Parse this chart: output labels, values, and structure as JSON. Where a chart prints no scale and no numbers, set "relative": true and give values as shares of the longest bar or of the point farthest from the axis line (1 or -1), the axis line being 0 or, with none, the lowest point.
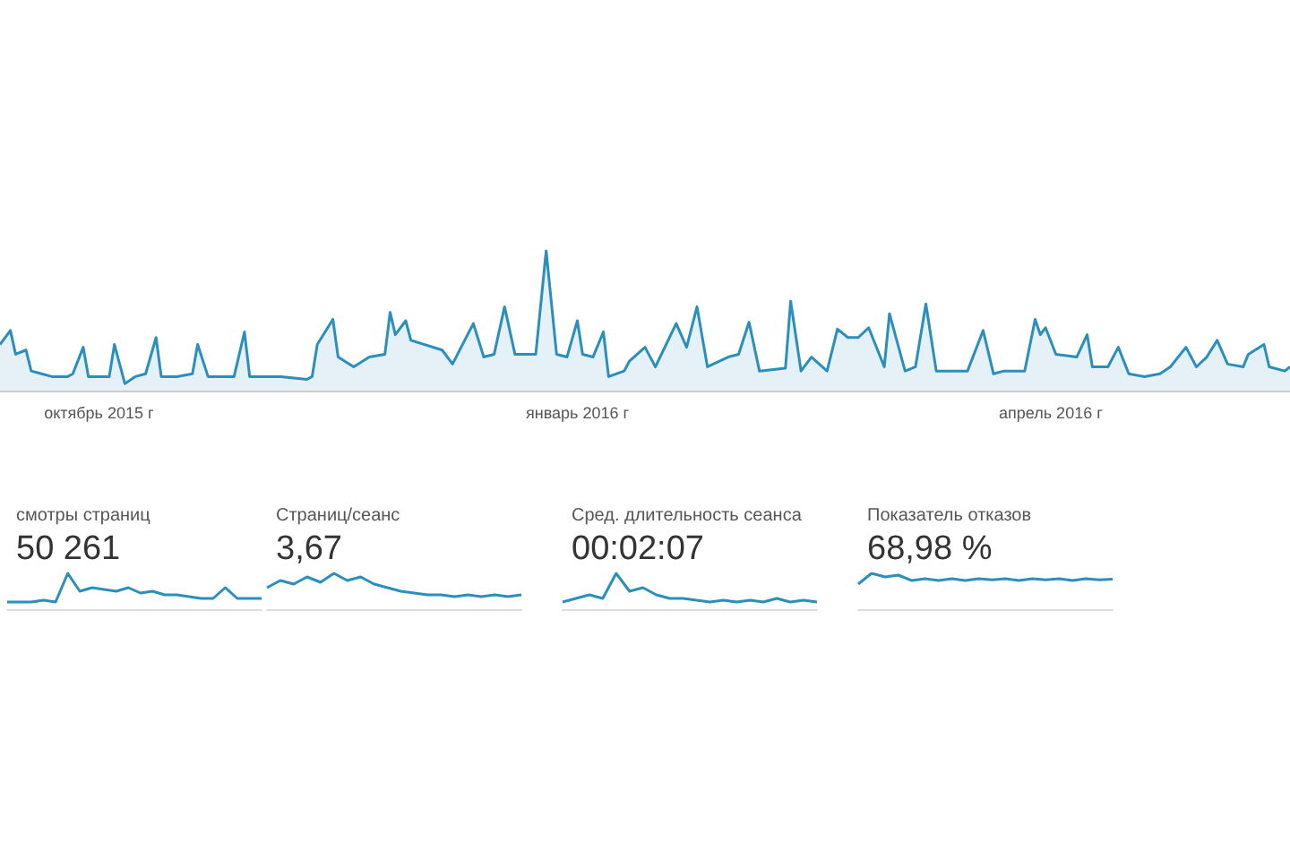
{
  "chart_data": [
    {
      "type": "area",
      "relative": true,
      "color": "#2a8fbd",
      "xlim": [
        "2015-09-12",
        "2016-05-17"
      ],
      "xticks": [
        {
          "value": "2015-10-01",
          "label": "октябрь 2015 г"
        },
        {
          "value": "2016-01-01",
          "label": "январь 2016 г"
        },
        {
          "value": "2016-04-01",
          "label": "апрель 2016 г"
        }
      ],
      "x": [
        "2015-09-12",
        "2015-09-14",
        "2015-09-15",
        "2015-09-17",
        "2015-09-18",
        "2015-09-20",
        "2015-09-22",
        "2015-09-25",
        "2015-09-26",
        "2015-09-28",
        "2015-09-29",
        "2015-10-03",
        "2015-10-04",
        "2015-10-06",
        "2015-10-08",
        "2015-10-10",
        "2015-10-12",
        "2015-10-13",
        "2015-10-16",
        "2015-10-19",
        "2015-10-20",
        "2015-10-22",
        "2015-10-27",
        "2015-10-29",
        "2015-10-30",
        "2015-11-05",
        "2015-11-10",
        "2015-11-11",
        "2015-11-12",
        "2015-11-15",
        "2015-11-16",
        "2015-11-19",
        "2015-11-22",
        "2015-11-25",
        "2015-11-26",
        "2015-11-27",
        "2015-11-29",
        "2015-11-30",
        "2015-12-06",
        "2015-12-08",
        "2015-12-12",
        "2015-12-14",
        "2015-12-16",
        "2015-12-18",
        "2015-12-20",
        "2015-12-24",
        "2015-12-26",
        "2015-12-28",
        "2015-12-30",
        "2016-01-01",
        "2016-01-02",
        "2016-01-04",
        "2016-01-06",
        "2016-01-07",
        "2016-01-10",
        "2016-01-11",
        "2016-01-14",
        "2016-01-16",
        "2016-01-20",
        "2016-01-22",
        "2016-01-24",
        "2016-01-26",
        "2016-01-30",
        "2016-02-01",
        "2016-02-03",
        "2016-02-05",
        "2016-02-10",
        "2016-02-11",
        "2016-02-13",
        "2016-02-15",
        "2016-02-18",
        "2016-02-20",
        "2016-02-22",
        "2016-02-24",
        "2016-02-26",
        "2016-02-29",
        "2016-03-01",
        "2016-03-04",
        "2016-03-06",
        "2016-03-08",
        "2016-03-10",
        "2016-03-14",
        "2016-03-16",
        "2016-03-19",
        "2016-03-21",
        "2016-03-23",
        "2016-03-27",
        "2016-03-29",
        "2016-03-30",
        "2016-03-31",
        "2016-04-02",
        "2016-04-06",
        "2016-04-08",
        "2016-04-09",
        "2016-04-12",
        "2016-04-14",
        "2016-04-16",
        "2016-04-19",
        "2016-04-22",
        "2016-04-24",
        "2016-04-27",
        "2016-04-29",
        "2016-05-01",
        "2016-05-03",
        "2016-05-05",
        "2016-05-08",
        "2016-05-09",
        "2016-05-12",
        "2016-05-13",
        "2016-05-16",
        "2016-05-17"
      ],
      "values": [
        0.33,
        0.43,
        0.26,
        0.29,
        0.14,
        0.12,
        0.1,
        0.1,
        0.12,
        0.31,
        0.1,
        0.1,
        0.33,
        0.05,
        0.1,
        0.12,
        0.38,
        0.1,
        0.1,
        0.12,
        0.33,
        0.1,
        0.1,
        0.42,
        0.1,
        0.1,
        0.08,
        0.1,
        0.33,
        0.51,
        0.24,
        0.17,
        0.24,
        0.26,
        0.56,
        0.4,
        0.5,
        0.36,
        0.29,
        0.19,
        0.48,
        0.24,
        0.26,
        0.6,
        0.26,
        0.26,
        1,
        0.26,
        0.24,
        0.5,
        0.26,
        0.24,
        0.42,
        0.1,
        0.14,
        0.21,
        0.31,
        0.17,
        0.48,
        0.31,
        0.6,
        0.17,
        0.24,
        0.26,
        0.49,
        0.14,
        0.16,
        0.64,
        0.14,
        0.24,
        0.14,
        0.44,
        0.38,
        0.38,
        0.45,
        0.17,
        0.55,
        0.14,
        0.17,
        0.62,
        0.14,
        0.14,
        0.14,
        0.43,
        0.12,
        0.14,
        0.14,
        0.51,
        0.4,
        0.45,
        0.26,
        0.24,
        0.4,
        0.17,
        0.17,
        0.31,
        0.12,
        0.1,
        0.12,
        0.17,
        0.31,
        0.17,
        0.24,
        0.36,
        0.19,
        0.17,
        0.26,
        0.33,
        0.17,
        0.14,
        0.17
      ]
    },
    {
      "type": "line",
      "relative": true,
      "color": "#2a8fbd",
      "title": "смотры страниц",
      "subtitle": "50 261",
      "categories": [
        null,
        null,
        null,
        null,
        null,
        null,
        null,
        null,
        null,
        null,
        null,
        null,
        null,
        null,
        null,
        null,
        null,
        null,
        null,
        null,
        null,
        null
      ],
      "values": [
        0.2,
        0.2,
        0.2,
        0.25,
        0.2,
        1,
        0.5,
        0.6,
        0.55,
        0.5,
        0.6,
        0.45,
        0.5,
        0.4,
        0.4,
        0.35,
        0.3,
        0.3,
        0.6,
        0.3,
        0.3,
        0.3
      ]
    },
    {
      "type": "line",
      "relative": true,
      "color": "#2a8fbd",
      "title": "Страниц/сеанс",
      "subtitle": "3,67",
      "categories": [
        null,
        null,
        null,
        null,
        null,
        null,
        null,
        null,
        null,
        null,
        null,
        null,
        null,
        null,
        null,
        null,
        null,
        null,
        null,
        null
      ],
      "values": [
        0.6,
        0.8,
        0.7,
        0.9,
        0.75,
        1,
        0.8,
        0.9,
        0.7,
        0.6,
        0.5,
        0.45,
        0.4,
        0.4,
        0.35,
        0.4,
        0.35,
        0.4,
        0.35,
        0.4
      ]
    },
    {
      "type": "line",
      "relative": true,
      "color": "#2a8fbd",
      "title": "Сред. длительность сеанса",
      "subtitle": "00:02:07",
      "categories": [
        null,
        null,
        null,
        null,
        null,
        null,
        null,
        null,
        null,
        null,
        null,
        null,
        null,
        null,
        null,
        null,
        null,
        null,
        null,
        null
      ],
      "values": [
        0.2,
        0.3,
        0.4,
        0.3,
        1,
        0.5,
        0.6,
        0.4,
        0.3,
        0.3,
        0.25,
        0.2,
        0.25,
        0.2,
        0.25,
        0.2,
        0.3,
        0.2,
        0.25,
        0.2
      ]
    },
    {
      "type": "line",
      "relative": true,
      "color": "#2a8fbd",
      "title": "Показатель отказов",
      "subtitle": "68,98 %",
      "categories": [
        null,
        null,
        null,
        null,
        null,
        null,
        null,
        null,
        null,
        null,
        null,
        null,
        null,
        null,
        null,
        null,
        null,
        null,
        null,
        null
      ],
      "values": [
        0.7,
        1,
        0.9,
        0.95,
        0.8,
        0.85,
        0.8,
        0.85,
        0.8,
        0.85,
        0.82,
        0.85,
        0.8,
        0.85,
        0.82,
        0.85,
        0.8,
        0.85,
        0.82,
        0.84
      ]
    }
  ]
}
